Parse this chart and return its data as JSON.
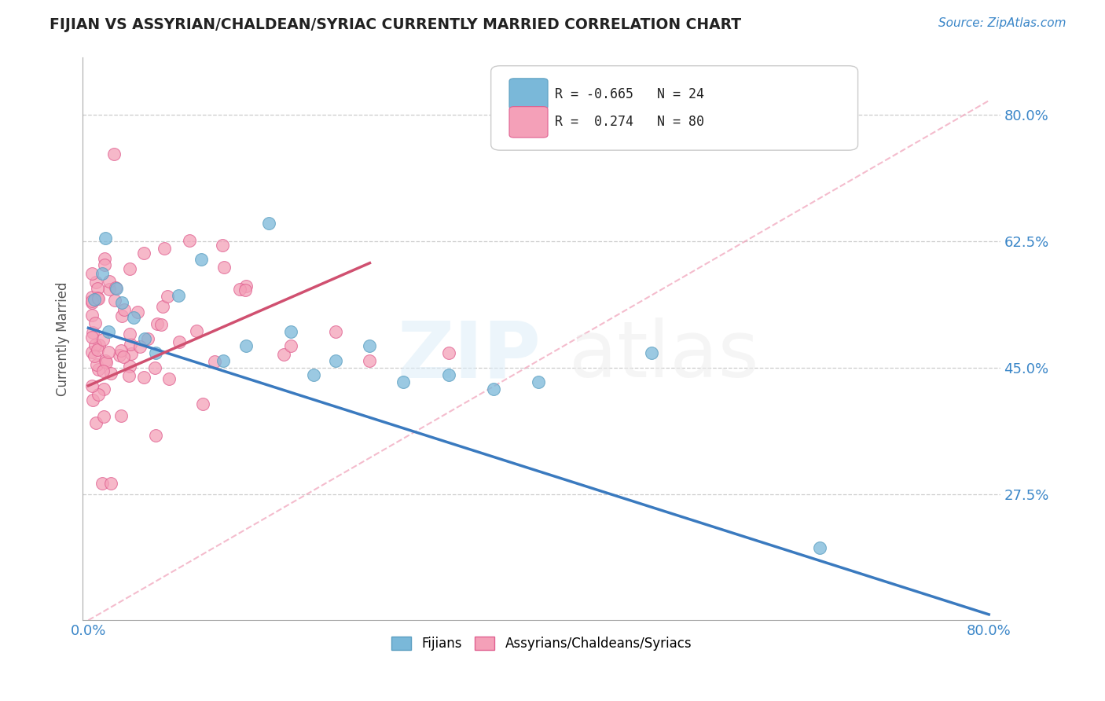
{
  "title": "FIJIAN VS ASSYRIAN/CHALDEAN/SYRIAC CURRENTLY MARRIED CORRELATION CHART",
  "source": "Source: ZipAtlas.com",
  "ylabel": "Currently Married",
  "xlim": [
    0.0,
    0.8
  ],
  "ylim": [
    0.1,
    0.88
  ],
  "ytick_vals": [
    0.275,
    0.45,
    0.625,
    0.8
  ],
  "ytick_labels": [
    "27.5%",
    "45.0%",
    "62.5%",
    "80.0%"
  ],
  "xtick_vals": [
    0.0,
    0.8
  ],
  "xtick_labels": [
    "0.0%",
    "80.0%"
  ],
  "color_blue": "#7ab8d9",
  "color_blue_edge": "#5a9ec0",
  "color_pink": "#f4a0b8",
  "color_pink_edge": "#e06090",
  "color_blue_line": "#3a7abf",
  "color_pink_line": "#d05070",
  "color_ref_dash": "#f0a0b8",
  "legend_r1": "R = -0.665",
  "legend_n1": "N = 24",
  "legend_r2": "R =  0.274",
  "legend_n2": "N = 80",
  "watermark_zip": "ZIP",
  "watermark_atlas": "atlas",
  "blue_line_x": [
    0.0,
    0.8
  ],
  "blue_line_y": [
    0.505,
    0.108
  ],
  "pink_line_x": [
    0.0,
    0.25
  ],
  "pink_line_y": [
    0.425,
    0.595
  ],
  "ref_line_x": [
    0.0,
    0.8
  ],
  "ref_line_y": [
    0.1,
    0.82
  ]
}
